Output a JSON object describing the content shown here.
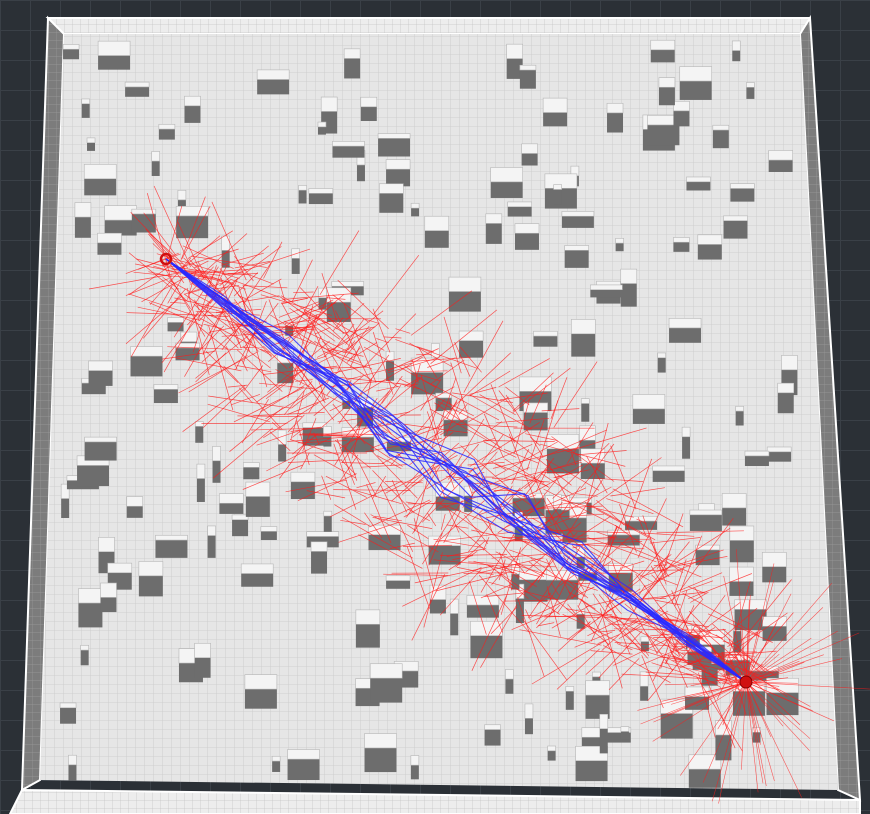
{
  "scene": {
    "type": "3d-voxel-map-path-planning",
    "background_color": "#2b3036",
    "grid_color": "#3a4047",
    "map_floor_color": "#e3e3e3",
    "wall_light_color": "#f2f2f2",
    "wall_dark_color": "#7a7a7a",
    "obstacle_top_color": "#f4f4f4",
    "obstacle_side_color": "#6d6d6d",
    "tree_edge_color": "#ff1a1a",
    "path_edge_color": "#2a2aff",
    "start_marker_color": "#d01010",
    "goal_marker_color": "#d01010"
  },
  "markers": {
    "start": "start-node",
    "goal": "goal-node"
  }
}
